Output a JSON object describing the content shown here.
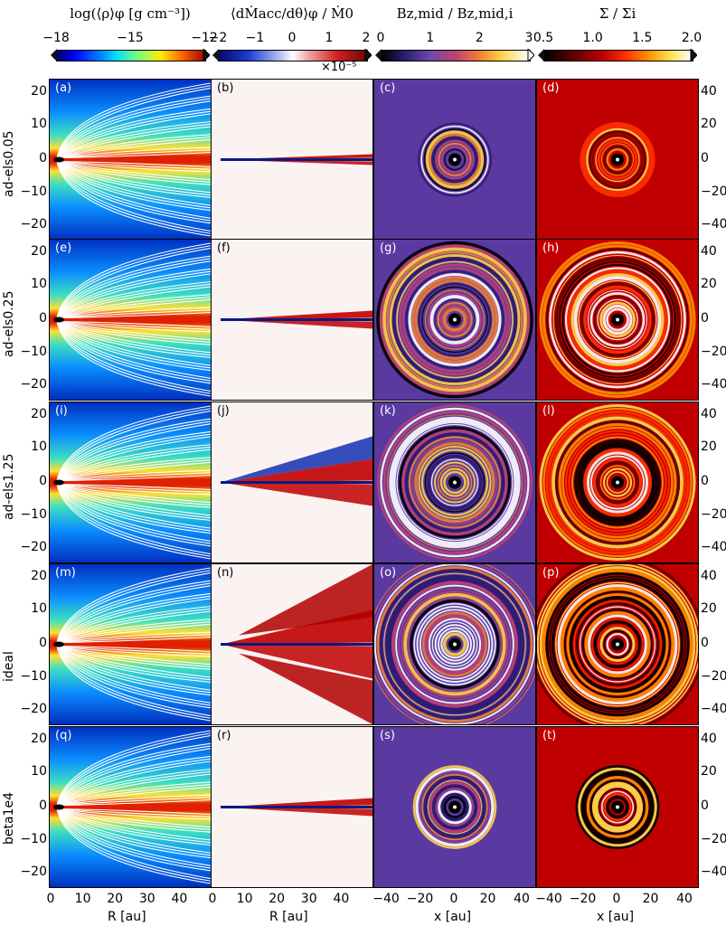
{
  "colorbars": [
    {
      "title": "log(⟨ρ⟩φ [g cm⁻³])",
      "ticks": [
        "−18",
        "−15",
        "−12"
      ],
      "gradient": "linear-gradient(90deg,#00006b,#0000ff 12%,#0088ff 30%,#00e0ff 40%,#7dff7a 55%,#ffea00 70%,#ff6000 85%,#a00000)"
    },
    {
      "title": "⟨dṀacc/dθ⟩φ / Ṁ0",
      "ticks": [
        "−2",
        "−1",
        "0",
        "1",
        "2"
      ],
      "scale": "×10⁻⁵",
      "gradient": "linear-gradient(90deg,#05086b,#1a3ed0 20%,#a8b8f0 40%,#ffffff 50%,#f0a8a8 60%,#d02020 80%,#6b0505)"
    },
    {
      "title": "Bz,mid / Bz,mid,i",
      "ticks": [
        "0",
        "1",
        "2",
        "3"
      ],
      "gradient": "linear-gradient(90deg,#000000,#2a1a70 15%,#6b4aa8 33%,#c04070 50%,#f08030 66%,#ffd040 80%,#ffffff)"
    },
    {
      "title": "Σ / Σi",
      "ticks": [
        "0.5",
        "1.0",
        "1.5",
        "2.0"
      ],
      "gradient": "linear-gradient(90deg,#000000,#600000 20%,#c00000 40%,#ff3000 55%,#ff9000 70%,#ffe050 85%,#ffffff)"
    }
  ],
  "rows": [
    {
      "name": "ad-els0.05",
      "labels": [
        "(a)",
        "(b)",
        "(c)",
        "(d)"
      ]
    },
    {
      "name": "ad-els0.25",
      "labels": [
        "(e)",
        "(f)",
        "(g)",
        "(h)"
      ]
    },
    {
      "name": "ad-els1.25",
      "labels": [
        "(i)",
        "(j)",
        "(k)",
        "(l)"
      ]
    },
    {
      "name": "ideal",
      "labels": [
        "(m)",
        "(n)",
        "(o)",
        "(p)"
      ]
    },
    {
      "name": "beta1e4",
      "labels": [
        "(q)",
        "(r)",
        "(s)",
        "(t)"
      ]
    }
  ],
  "axes": {
    "left_y_ticks": [
      "20",
      "10",
      "0",
      "−10",
      "−20"
    ],
    "right_y_ticks": [
      "40",
      "20",
      "0",
      "−20",
      "−40"
    ],
    "R_ticks": [
      "0",
      "10",
      "20",
      "30",
      "40"
    ],
    "x_ticks": [
      "−40",
      "−20",
      "0",
      "20",
      "40"
    ],
    "R_label": "R [au]",
    "x_label": "x [au]"
  }
}
